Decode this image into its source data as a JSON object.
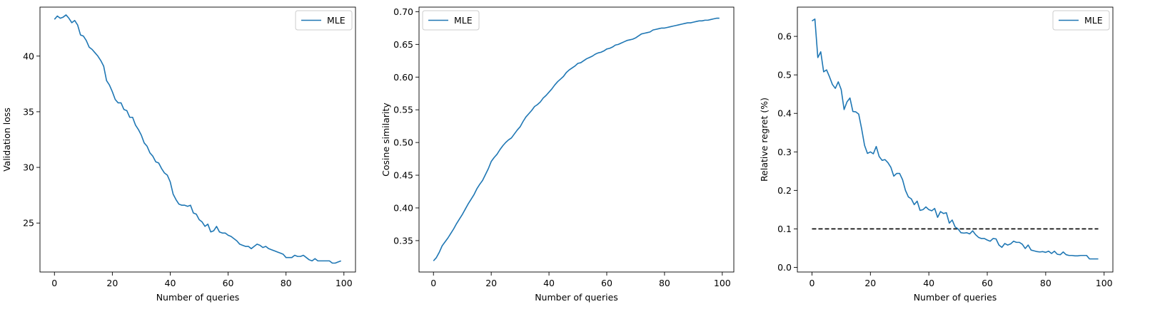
{
  "chart_data": [
    {
      "type": "line",
      "xlabel": "Number of queries",
      "ylabel": "Validation loss",
      "xlim": [
        -5,
        104
      ],
      "ylim": [
        20.6,
        44.4
      ],
      "xticks": [
        0,
        20,
        40,
        60,
        80,
        100
      ],
      "yticks": [
        25,
        30,
        35,
        40
      ],
      "legend": "upper right",
      "grid": false,
      "series": [
        {
          "name": "MLE",
          "color": "#1f77b4",
          "x": [
            0,
            1,
            2,
            3,
            4,
            5,
            6,
            7,
            8,
            9,
            10,
            11,
            12,
            13,
            14,
            15,
            16,
            17,
            18,
            19,
            20,
            21,
            22,
            23,
            24,
            25,
            26,
            27,
            28,
            29,
            30,
            31,
            32,
            33,
            34,
            35,
            36,
            37,
            38,
            39,
            40,
            41,
            42,
            43,
            44,
            45,
            46,
            47,
            48,
            49,
            50,
            51,
            52,
            53,
            54,
            55,
            56,
            57,
            58,
            59,
            60,
            61,
            62,
            63,
            64,
            65,
            66,
            67,
            68,
            69,
            70,
            71,
            72,
            73,
            74,
            75,
            76,
            77,
            78,
            79,
            80,
            81,
            82,
            83,
            84,
            85,
            86,
            87,
            88,
            89,
            90,
            91,
            92,
            93,
            94,
            95,
            96,
            97,
            98,
            99
          ],
          "y": [
            43.3,
            43.6,
            43.4,
            43.5,
            43.7,
            43.4,
            43.0,
            43.2,
            42.8,
            41.9,
            41.8,
            41.4,
            40.8,
            40.6,
            40.3,
            40.0,
            39.6,
            39.1,
            37.8,
            37.4,
            36.8,
            36.1,
            35.8,
            35.8,
            35.2,
            35.1,
            34.5,
            34.5,
            33.8,
            33.4,
            32.9,
            32.2,
            31.9,
            31.3,
            31.0,
            30.5,
            30.4,
            29.9,
            29.5,
            29.3,
            28.7,
            27.6,
            27.1,
            26.7,
            26.6,
            26.6,
            26.5,
            26.6,
            25.9,
            25.8,
            25.3,
            25.1,
            24.7,
            24.9,
            24.2,
            24.3,
            24.7,
            24.2,
            24.1,
            24.1,
            23.9,
            23.8,
            23.6,
            23.4,
            23.1,
            23.0,
            22.9,
            22.9,
            22.7,
            22.9,
            23.1,
            23.0,
            22.8,
            22.9,
            22.7,
            22.6,
            22.5,
            22.4,
            22.3,
            22.2,
            21.9,
            21.9,
            21.9,
            22.1,
            22.0,
            22.0,
            22.1,
            21.9,
            21.7,
            21.6,
            21.8,
            21.6,
            21.6,
            21.6,
            21.6,
            21.6,
            21.4,
            21.4,
            21.5,
            21.6
          ]
        }
      ]
    },
    {
      "type": "line",
      "xlabel": "Number of queries",
      "ylabel": "Cosine similarity",
      "xlim": [
        -5,
        104
      ],
      "ylim": [
        0.302,
        0.707
      ],
      "xticks": [
        0,
        20,
        40,
        60,
        80,
        100
      ],
      "yticks": [
        0.35,
        0.4,
        0.45,
        0.5,
        0.55,
        0.6,
        0.65,
        0.7
      ],
      "ytick_labels": [
        "0.35",
        "0.40",
        "0.45",
        "0.50",
        "0.55",
        "0.60",
        "0.65",
        "0.70"
      ],
      "legend": "upper left",
      "grid": false,
      "series": [
        {
          "name": "MLE",
          "color": "#1f77b4",
          "x": [
            0,
            1,
            2,
            3,
            4,
            5,
            6,
            7,
            8,
            9,
            10,
            11,
            12,
            13,
            14,
            15,
            16,
            17,
            18,
            19,
            20,
            21,
            22,
            23,
            24,
            25,
            26,
            27,
            28,
            29,
            30,
            31,
            32,
            33,
            34,
            35,
            36,
            37,
            38,
            39,
            40,
            41,
            42,
            43,
            44,
            45,
            46,
            47,
            48,
            49,
            50,
            51,
            52,
            53,
            54,
            55,
            56,
            57,
            58,
            59,
            60,
            61,
            62,
            63,
            64,
            65,
            66,
            67,
            68,
            69,
            70,
            71,
            72,
            73,
            74,
            75,
            76,
            77,
            78,
            79,
            80,
            81,
            82,
            83,
            84,
            85,
            86,
            87,
            88,
            89,
            90,
            91,
            92,
            93,
            94,
            95,
            96,
            97,
            98,
            99
          ],
          "y": [
            0.319,
            0.324,
            0.332,
            0.342,
            0.348,
            0.354,
            0.361,
            0.368,
            0.376,
            0.383,
            0.39,
            0.398,
            0.406,
            0.413,
            0.42,
            0.429,
            0.436,
            0.442,
            0.451,
            0.46,
            0.471,
            0.477,
            0.482,
            0.489,
            0.495,
            0.5,
            0.504,
            0.507,
            0.513,
            0.519,
            0.524,
            0.532,
            0.539,
            0.544,
            0.549,
            0.555,
            0.558,
            0.562,
            0.568,
            0.572,
            0.577,
            0.582,
            0.588,
            0.593,
            0.597,
            0.601,
            0.607,
            0.611,
            0.614,
            0.617,
            0.621,
            0.622,
            0.625,
            0.628,
            0.63,
            0.632,
            0.635,
            0.637,
            0.638,
            0.64,
            0.643,
            0.644,
            0.646,
            0.649,
            0.65,
            0.652,
            0.654,
            0.656,
            0.657,
            0.658,
            0.66,
            0.663,
            0.666,
            0.667,
            0.668,
            0.669,
            0.672,
            0.673,
            0.674,
            0.675,
            0.675,
            0.676,
            0.677,
            0.678,
            0.679,
            0.68,
            0.681,
            0.682,
            0.683,
            0.683,
            0.684,
            0.685,
            0.686,
            0.686,
            0.687,
            0.687,
            0.688,
            0.689,
            0.69,
            0.69
          ]
        }
      ]
    },
    {
      "type": "line",
      "xlabel": "Number of queries",
      "ylabel": "Relative regret (%)",
      "xlim": [
        -5,
        103
      ],
      "ylim": [
        -0.012,
        0.676
      ],
      "xticks": [
        0,
        20,
        40,
        60,
        80,
        100
      ],
      "yticks": [
        0.0,
        0.1,
        0.2,
        0.3,
        0.4,
        0.5,
        0.6
      ],
      "ytick_labels": [
        "0.0",
        "0.1",
        "0.2",
        "0.3",
        "0.4",
        "0.5",
        "0.6"
      ],
      "legend": "upper right",
      "grid": false,
      "reference_line": {
        "y": 0.1,
        "x": [
          0,
          98
        ],
        "style": "dashed",
        "color": "#000000"
      },
      "series": [
        {
          "name": "MLE",
          "color": "#1f77b4",
          "x": [
            0,
            1,
            2,
            3,
            4,
            5,
            6,
            7,
            8,
            9,
            10,
            11,
            12,
            13,
            14,
            15,
            16,
            17,
            18,
            19,
            20,
            21,
            22,
            23,
            24,
            25,
            26,
            27,
            28,
            29,
            30,
            31,
            32,
            33,
            34,
            35,
            36,
            37,
            38,
            39,
            40,
            41,
            42,
            43,
            44,
            45,
            46,
            47,
            48,
            49,
            50,
            51,
            52,
            53,
            54,
            55,
            56,
            57,
            58,
            59,
            60,
            61,
            62,
            63,
            64,
            65,
            66,
            67,
            68,
            69,
            70,
            71,
            72,
            73,
            74,
            75,
            76,
            77,
            78,
            79,
            80,
            81,
            82,
            83,
            84,
            85,
            86,
            87,
            88,
            89,
            90,
            91,
            92,
            93,
            94,
            95,
            96,
            97,
            98
          ],
          "y": [
            0.64,
            0.645,
            0.545,
            0.56,
            0.508,
            0.513,
            0.495,
            0.475,
            0.465,
            0.482,
            0.462,
            0.41,
            0.43,
            0.44,
            0.405,
            0.404,
            0.398,
            0.36,
            0.317,
            0.296,
            0.3,
            0.295,
            0.314,
            0.288,
            0.278,
            0.28,
            0.272,
            0.26,
            0.237,
            0.244,
            0.244,
            0.228,
            0.2,
            0.183,
            0.178,
            0.163,
            0.172,
            0.148,
            0.15,
            0.157,
            0.15,
            0.147,
            0.153,
            0.13,
            0.145,
            0.14,
            0.142,
            0.115,
            0.123,
            0.105,
            0.1,
            0.09,
            0.089,
            0.09,
            0.087,
            0.095,
            0.085,
            0.078,
            0.075,
            0.075,
            0.071,
            0.068,
            0.075,
            0.074,
            0.058,
            0.052,
            0.062,
            0.058,
            0.061,
            0.068,
            0.065,
            0.065,
            0.06,
            0.049,
            0.058,
            0.045,
            0.043,
            0.041,
            0.04,
            0.041,
            0.039,
            0.042,
            0.036,
            0.042,
            0.034,
            0.033,
            0.04,
            0.033,
            0.031,
            0.031,
            0.03,
            0.03,
            0.031,
            0.031,
            0.031,
            0.022,
            0.022,
            0.022,
            0.022
          ]
        }
      ]
    }
  ]
}
